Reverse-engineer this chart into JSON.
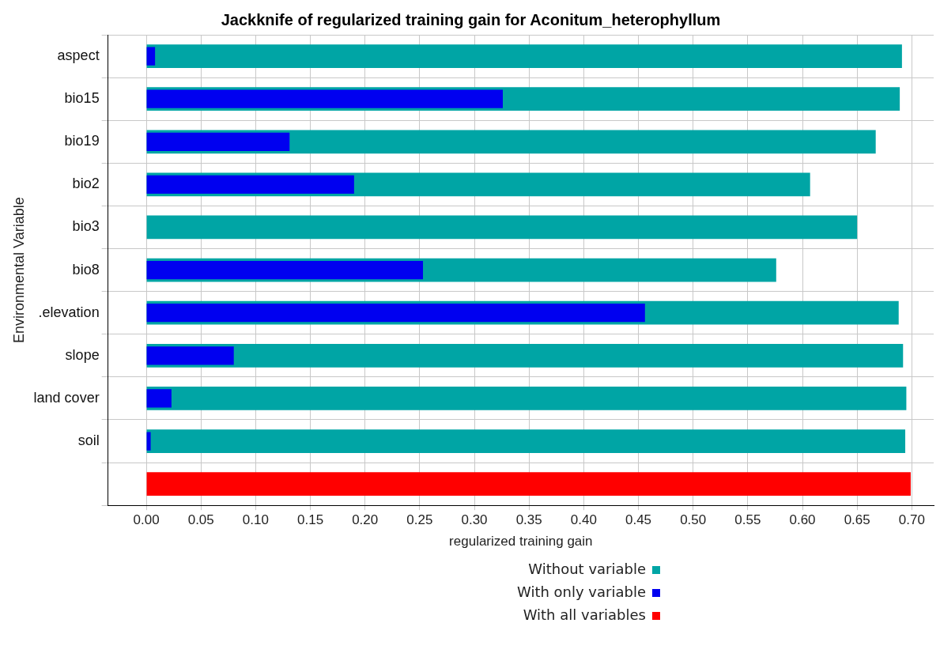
{
  "chart_data": {
    "type": "bar",
    "orientation": "horizontal",
    "title": "Jackknife of regularized training gain for Aconitum_heterophyllum",
    "xlabel": "regularized training gain",
    "ylabel": "Environmental Variable",
    "categories": [
      "aspect",
      "bio15",
      "bio19",
      "bio2",
      "bio3",
      "bio8",
      ".elevation",
      "slope",
      "land cover",
      "soil",
      null
    ],
    "series": [
      {
        "name": "Without variable",
        "color": "#00a5a5",
        "values": [
          0.691,
          0.689,
          0.667,
          0.607,
          0.65,
          0.576,
          0.688,
          0.692,
          0.695,
          0.694,
          null
        ]
      },
      {
        "name": "With only variable",
        "color": "#0000f0",
        "values": [
          0.008,
          0.326,
          0.131,
          0.19,
          0.0,
          0.253,
          0.456,
          0.08,
          0.023,
          0.004,
          null
        ]
      },
      {
        "name": "With all variables",
        "color": "#ff0000",
        "values": [
          null,
          null,
          null,
          null,
          null,
          null,
          null,
          null,
          null,
          null,
          0.699
        ]
      }
    ],
    "xlim": [
      -0.035,
      0.72
    ],
    "xticks": [
      {
        "value": 0,
        "label": "0.00"
      },
      {
        "value": 0.05,
        "label": "0.05"
      },
      {
        "value": 0.1,
        "label": "0.10"
      },
      {
        "value": 0.15,
        "label": "0.15"
      },
      {
        "value": 0.2,
        "label": "0.20"
      },
      {
        "value": 0.25,
        "label": "0.25"
      },
      {
        "value": 0.3,
        "label": "0.30"
      },
      {
        "value": 0.35,
        "label": "0.35"
      },
      {
        "value": 0.4,
        "label": "0.40"
      },
      {
        "value": 0.45,
        "label": "0.45"
      },
      {
        "value": 0.5,
        "label": "0.50"
      },
      {
        "value": 0.55,
        "label": "0.55"
      },
      {
        "value": 0.6,
        "label": "0.60"
      },
      {
        "value": 0.65,
        "label": "0.65"
      },
      {
        "value": 0.7,
        "label": "0.70"
      }
    ],
    "grid": true,
    "legend": "bottom"
  }
}
